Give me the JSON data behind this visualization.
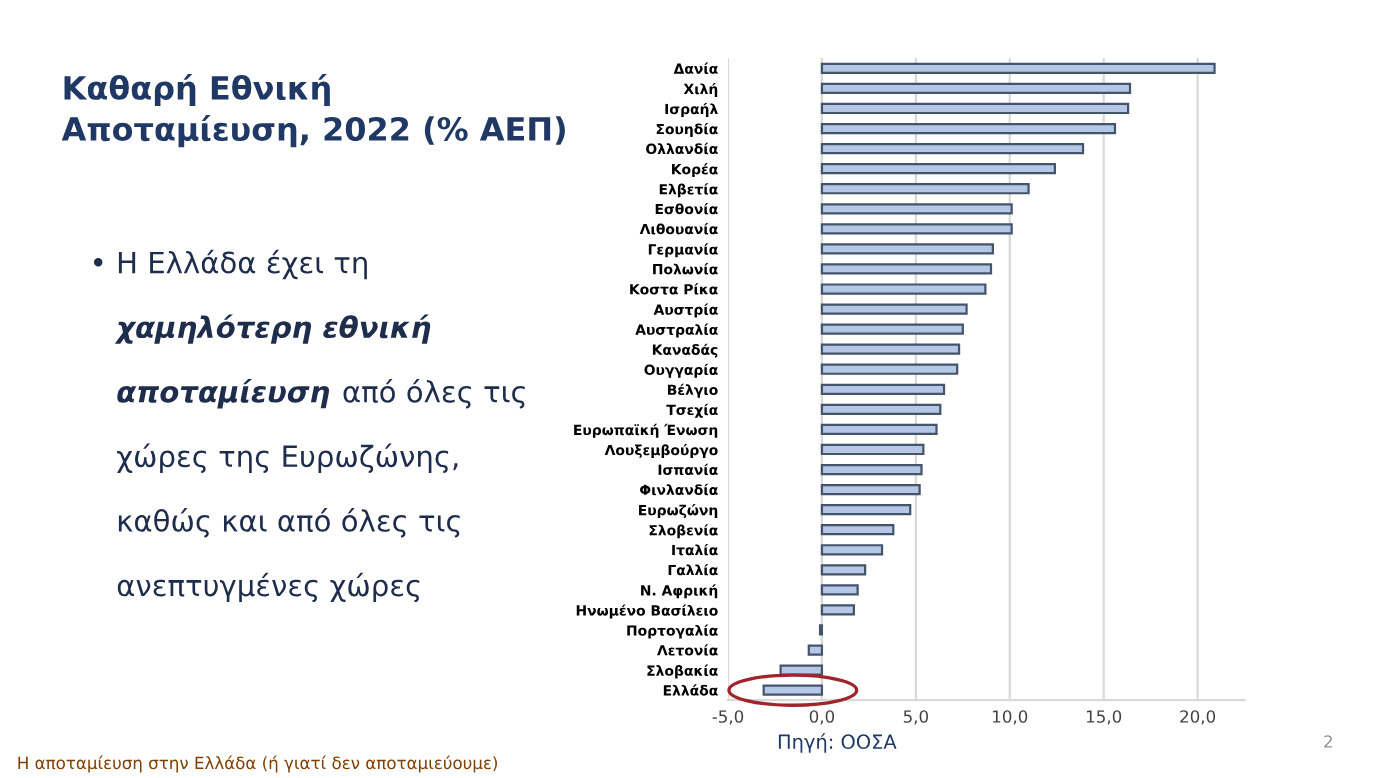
{
  "chart_data": {
    "type": "bar",
    "orientation": "horizontal",
    "title": "Καθαρή Εθνική\nΑποταμίευση, 2022 (% ΑΕΠ)",
    "categories": [
      "Δανία",
      "Χιλή",
      "Ισραήλ",
      "Σουηδία",
      "Ολλανδία",
      "Κορέα",
      "Ελβετία",
      "Εσθονία",
      "Λιθουανία",
      "Γερμανία",
      "Πολωνία",
      "Κοστα Ρίκα",
      "Αυστρία",
      "Αυστραλία",
      "Καναδάς",
      "Ουγγαρία",
      "Βέλγιο",
      "Τσεχία",
      "Ευρωπαϊκή Ένωση",
      "Λουξεμβούργο",
      "Ισπανία",
      "Φινλανδία",
      "Ευρωζώνη",
      "Σλοβενία",
      "Ιταλία",
      "Γαλλία",
      "Ν. Αφρική",
      "Ηνωμένο Βασίλειο",
      "Πορτογαλία",
      "Λετονία",
      "Σλοβακία",
      "Ελλάδα"
    ],
    "values": [
      20.9,
      16.4,
      16.3,
      15.6,
      13.9,
      12.4,
      11.0,
      10.1,
      10.1,
      9.1,
      9.0,
      8.7,
      7.7,
      7.5,
      7.3,
      7.2,
      6.5,
      6.3,
      6.1,
      5.4,
      5.3,
      5.2,
      4.7,
      3.8,
      3.2,
      2.3,
      1.9,
      1.7,
      -0.1,
      -0.7,
      -2.2,
      -3.1
    ],
    "color": "#b4c7e7",
    "xlim": [
      -5,
      22.5
    ],
    "xticks": [
      {
        "value": -5,
        "label": "-5,0"
      },
      {
        "value": 0,
        "label": "0,0"
      },
      {
        "value": 5,
        "label": "5,0"
      },
      {
        "value": 10,
        "label": "10,0"
      },
      {
        "value": 15,
        "label": "15,0"
      },
      {
        "value": 20,
        "label": "20,0"
      }
    ],
    "grid": "x",
    "annotations": [
      "• Η Ελλάδα έχει τη",
      "χαμηλότερη εθνική",
      "αποταμίευση",
      "από όλες τις",
      "χώρες της Ευρωζώνης,",
      "καθώς και από όλες τις",
      "ανεπτυγμένες χώρες",
      "Πηγή: ΟΟΣΑ",
      "Η αποταμίευση στην Ελλάδα (ή γιατί δεν αποταμιεύουμε)",
      "2"
    ]
  }
}
